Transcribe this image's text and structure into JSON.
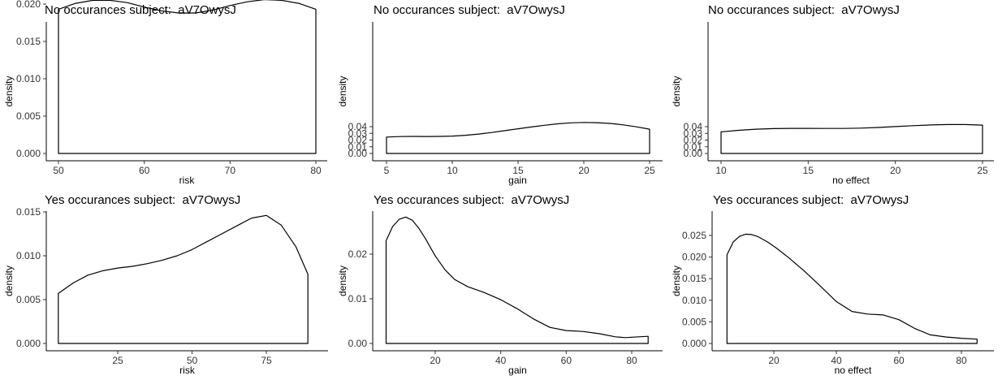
{
  "chart_data": [
    {
      "type": "area",
      "title": "No occurances subject:  aV7OwysJ",
      "xlabel": "risk",
      "ylabel": "density",
      "xlim": [
        49,
        81
      ],
      "ylim": [
        0,
        0.0215
      ],
      "xticks": [
        50,
        60,
        70,
        80
      ],
      "yticks": [
        0.0,
        0.005,
        0.01,
        0.015,
        0.02
      ],
      "ytick_labels": [
        "0.000",
        "0.005",
        "0.010",
        "0.015",
        "0.020"
      ],
      "x": [
        50,
        52,
        54,
        56,
        58,
        60,
        62,
        64,
        66,
        68,
        70,
        72,
        74,
        76,
        78,
        80
      ],
      "y": [
        0.0193,
        0.0201,
        0.0205,
        0.0205,
        0.0202,
        0.0196,
        0.0191,
        0.0188,
        0.0188,
        0.0192,
        0.0198,
        0.0203,
        0.0206,
        0.0205,
        0.0201,
        0.0193
      ]
    },
    {
      "type": "area",
      "title": "No occurances subject:  aV7OwysJ",
      "xlabel": "gain",
      "ylabel": "density",
      "xlim": [
        4.5,
        25.5
      ],
      "ylim": [
        0,
        0.048
      ],
      "xticks": [
        5,
        10,
        15,
        20,
        25
      ],
      "yticks": [
        0.0,
        0.01,
        0.02,
        0.03,
        0.04
      ],
      "ytick_labels": [
        "0.00",
        "0.01",
        "0.02",
        "0.03",
        "0.04"
      ],
      "x": [
        5,
        6,
        7,
        8,
        9,
        10,
        11,
        12,
        13,
        14,
        15,
        16,
        17,
        18,
        19,
        20,
        21,
        22,
        23,
        24,
        25
      ],
      "y": [
        0.0245,
        0.0252,
        0.0254,
        0.0253,
        0.0254,
        0.026,
        0.0272,
        0.029,
        0.0313,
        0.034,
        0.0368,
        0.0395,
        0.042,
        0.0443,
        0.0457,
        0.0463,
        0.046,
        0.0448,
        0.0427,
        0.0398,
        0.0362
      ]
    },
    {
      "type": "area",
      "title": "No occurances subject:  aV7OwysJ",
      "xlabel": "no effect",
      "ylabel": "density",
      "xlim": [
        9.5,
        25.5
      ],
      "ylim": [
        0,
        0.045
      ],
      "xticks": [
        10,
        15,
        20,
        25
      ],
      "yticks": [
        0.0,
        0.01,
        0.02,
        0.03,
        0.04
      ],
      "ytick_labels": [
        "0.00",
        "0.01",
        "0.02",
        "0.03",
        "0.04"
      ],
      "x": [
        10,
        11,
        12,
        13,
        14,
        15,
        16,
        17,
        18,
        19,
        20,
        21,
        22,
        23,
        24,
        25
      ],
      "y": [
        0.0322,
        0.0345,
        0.0362,
        0.0371,
        0.0375,
        0.0375,
        0.0373,
        0.0373,
        0.0378,
        0.0388,
        0.0401,
        0.0415,
        0.0425,
        0.0431,
        0.0431,
        0.0423
      ]
    },
    {
      "type": "area",
      "title": "Yes occurances subject:  aV7OwysJ",
      "xlabel": "risk",
      "ylabel": "density",
      "xlim": [
        1,
        94
      ],
      "ylim": [
        0,
        0.0152
      ],
      "xticks": [
        25,
        50,
        75
      ],
      "yticks": [
        0.0,
        0.005,
        0.01,
        0.015
      ],
      "ytick_labels": [
        "0.000",
        "0.005",
        "0.010",
        "0.015"
      ],
      "x": [
        5,
        10,
        15,
        20,
        25,
        30,
        35,
        40,
        45,
        50,
        55,
        60,
        65,
        70,
        75,
        80,
        85,
        89
      ],
      "y": [
        0.0057,
        0.0069,
        0.0078,
        0.0083,
        0.0086,
        0.0088,
        0.0091,
        0.0095,
        0.01,
        0.0107,
        0.0116,
        0.0125,
        0.0134,
        0.0143,
        0.0146,
        0.0135,
        0.011,
        0.0079
      ]
    },
    {
      "type": "area",
      "title": "Yes occurances subject:  aV7OwysJ",
      "xlabel": "gain",
      "ylabel": "density",
      "xlim": [
        1,
        89
      ],
      "ylim": [
        0,
        0.0298
      ],
      "xticks": [
        20,
        40,
        60,
        80
      ],
      "yticks": [
        0.0,
        0.01,
        0.02
      ],
      "ytick_labels": [
        "0.00",
        "0.01",
        "0.02"
      ],
      "x": [
        5,
        7,
        9,
        11,
        13,
        15,
        17,
        20,
        23,
        26,
        30,
        35,
        40,
        45,
        50,
        55,
        60,
        65,
        70,
        75,
        78,
        80,
        85
      ],
      "y": [
        0.023,
        0.0262,
        0.0278,
        0.0283,
        0.0276,
        0.0258,
        0.0235,
        0.0196,
        0.0165,
        0.0143,
        0.0127,
        0.0114,
        0.0098,
        0.0078,
        0.0055,
        0.0036,
        0.0029,
        0.0027,
        0.0022,
        0.0015,
        0.0013,
        0.0014,
        0.0016
      ]
    },
    {
      "type": "area",
      "title": "Yes occurances subject:  aV7OwysJ",
      "xlabel": "no effect",
      "ylabel": "density",
      "xlim": [
        1,
        89
      ],
      "ylim": [
        0,
        0.0268
      ],
      "xticks": [
        20,
        40,
        60,
        80
      ],
      "yticks": [
        0.0,
        0.005,
        0.01,
        0.015,
        0.02,
        0.025
      ],
      "ytick_labels": [
        "0.000",
        "0.005",
        "0.010",
        "0.015",
        "0.020",
        "0.025"
      ],
      "x": [
        5,
        7,
        9,
        11,
        13,
        15,
        18,
        21,
        25,
        30,
        35,
        40,
        45,
        50,
        55,
        60,
        65,
        70,
        75,
        80,
        85
      ],
      "y": [
        0.0205,
        0.0235,
        0.0248,
        0.0253,
        0.0252,
        0.0247,
        0.0235,
        0.022,
        0.0197,
        0.0166,
        0.0132,
        0.0097,
        0.0074,
        0.0068,
        0.0066,
        0.0055,
        0.0035,
        0.002,
        0.0015,
        0.0012,
        0.001
      ]
    }
  ]
}
